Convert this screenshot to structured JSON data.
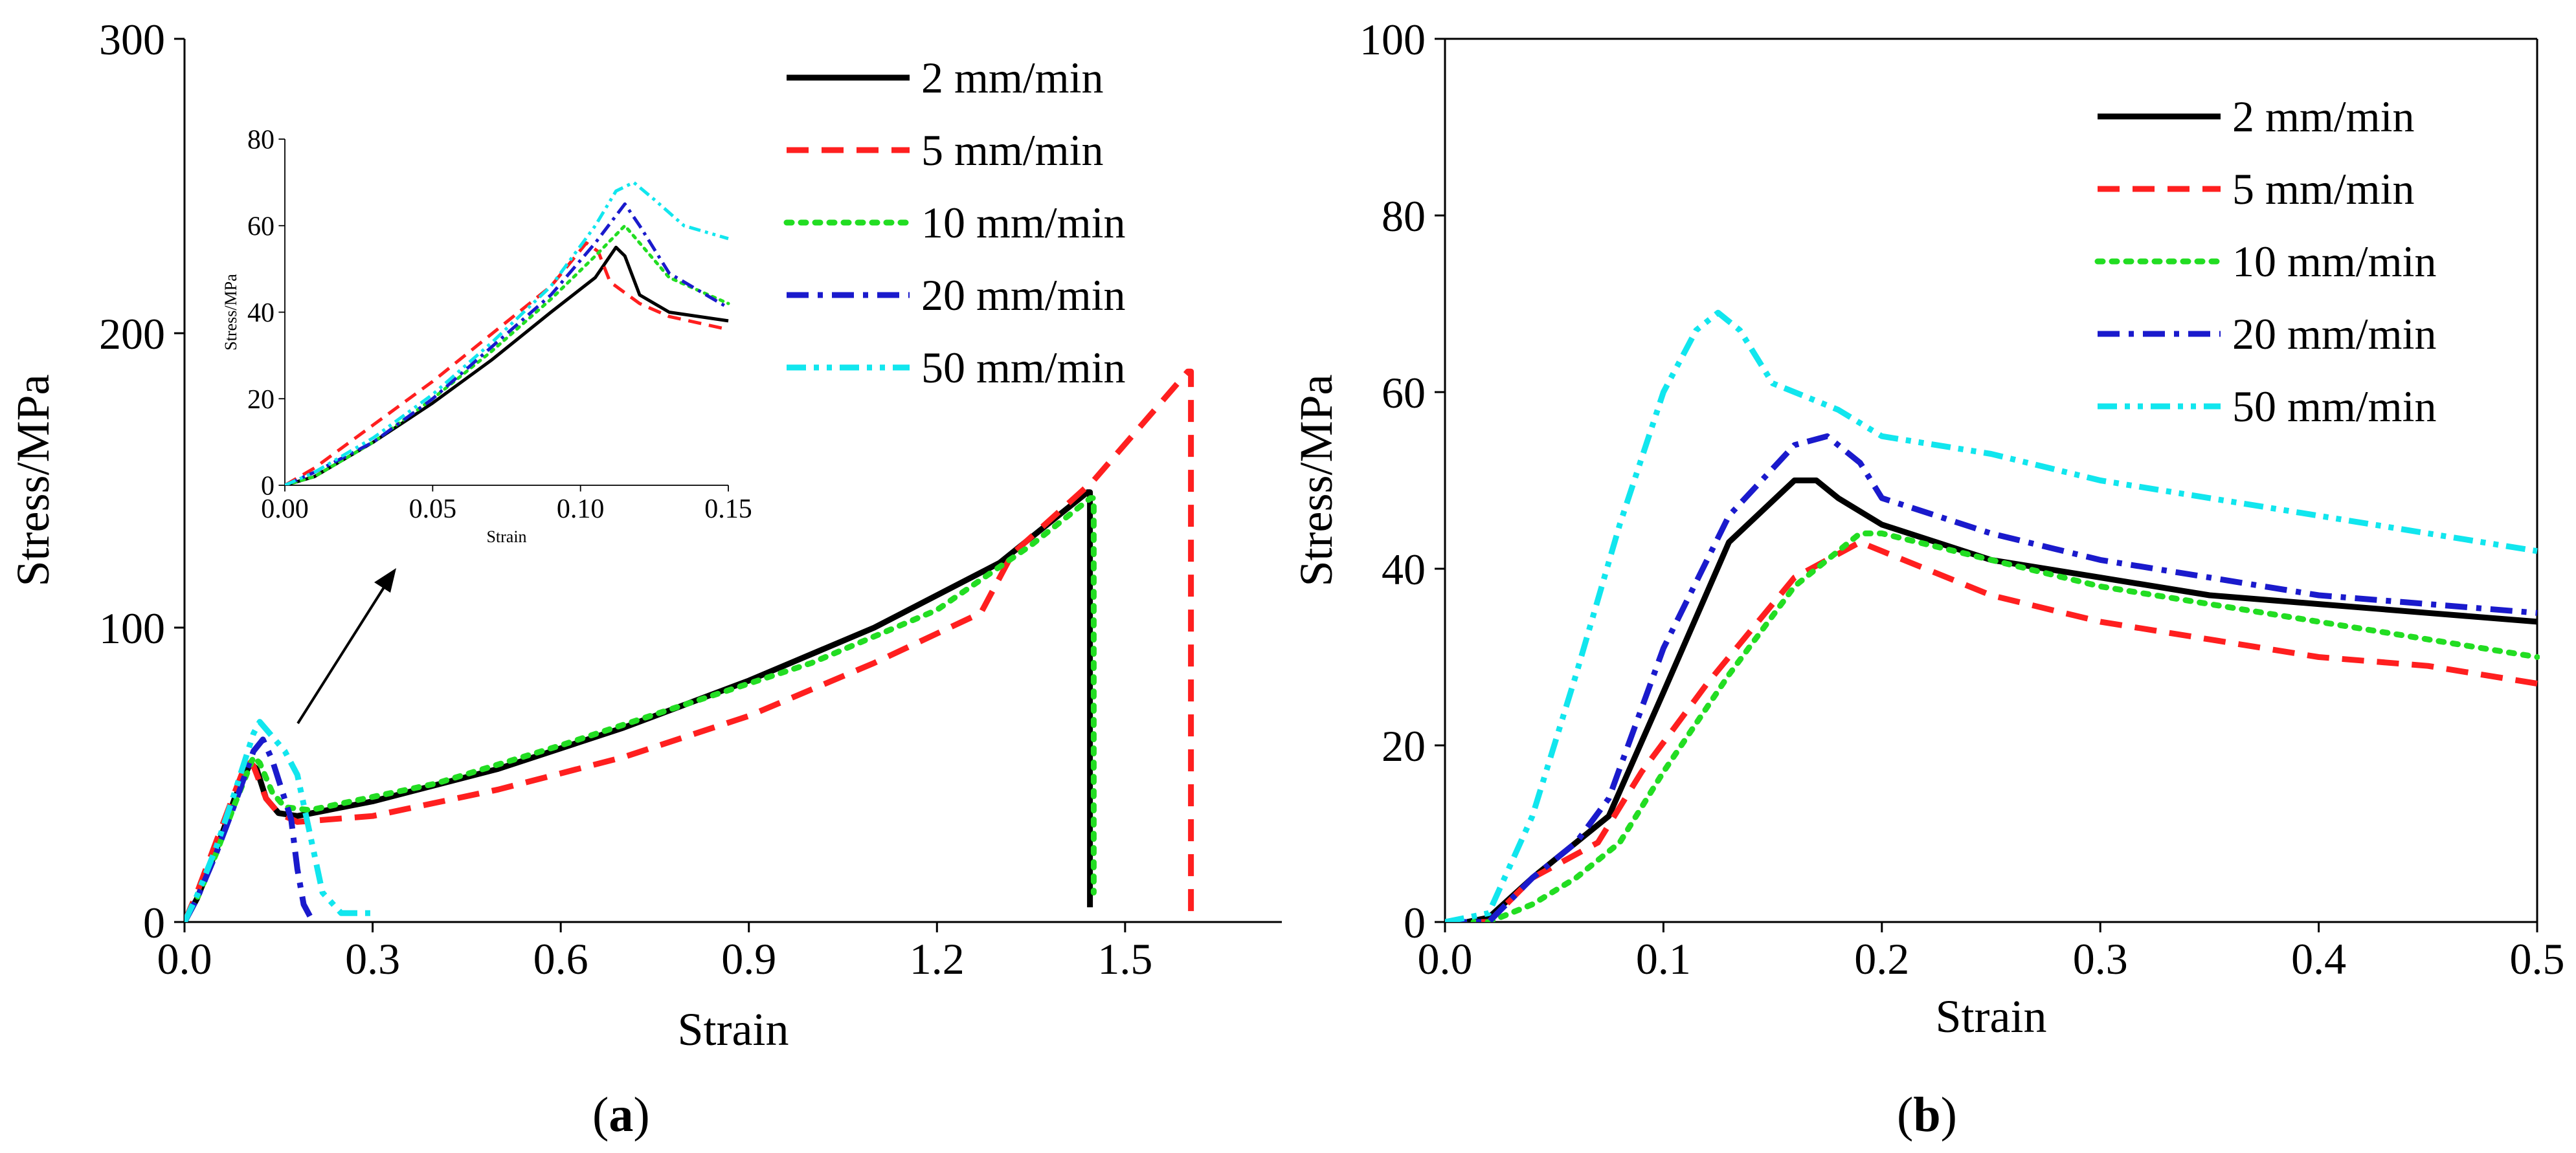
{
  "chart_data": [
    {
      "id": "a",
      "type": "line",
      "xlabel": "Strain",
      "ylabel": "Stress/MPa",
      "xlim": [
        0,
        1.75
      ],
      "ylim": [
        0,
        300
      ],
      "xticks": [
        "0.0",
        "0.3",
        "0.6",
        "0.9",
        "1.2",
        "1.5"
      ],
      "yticks": [
        "0",
        "100",
        "200",
        "300"
      ],
      "legend": [
        "2 mm/min",
        "5 mm/min",
        "10 mm/min",
        "20 mm/min",
        "50 mm/min"
      ],
      "legend_position": "top-right",
      "series": [
        {
          "name": "2 mm/min",
          "color": "#000000",
          "dash": "solid",
          "x": [
            0,
            0.02,
            0.05,
            0.08,
            0.105,
            0.115,
            0.13,
            0.15,
            0.18,
            0.3,
            0.5,
            0.7,
            0.9,
            1.1,
            1.3,
            1.44,
            1.444,
            1.444
          ],
          "y": [
            0,
            8,
            24,
            42,
            54,
            52,
            42,
            37,
            36,
            41,
            52,
            66,
            82,
            100,
            122,
            146,
            146,
            5
          ]
        },
        {
          "name": "5 mm/min",
          "color": "#ff1f1f",
          "dash": "dash",
          "x": [
            0,
            0.02,
            0.05,
            0.08,
            0.1,
            0.11,
            0.13,
            0.15,
            0.18,
            0.3,
            0.5,
            0.7,
            0.9,
            1.1,
            1.27,
            1.32,
            1.45,
            1.6,
            1.605,
            1.605
          ],
          "y": [
            0,
            10,
            27,
            44,
            55,
            53,
            42,
            37,
            34,
            36,
            45,
            56,
            70,
            88,
            105,
            125,
            150,
            187,
            187,
            0
          ]
        },
        {
          "name": "10 mm/min",
          "color": "#22dd22",
          "dash": "dot",
          "x": [
            0,
            0.02,
            0.05,
            0.08,
            0.11,
            0.12,
            0.14,
            0.16,
            0.2,
            0.4,
            0.6,
            0.8,
            1.0,
            1.2,
            1.35,
            1.445,
            1.45,
            1.45
          ],
          "y": [
            0,
            8,
            23,
            40,
            56,
            54,
            44,
            39,
            38,
            47,
            60,
            74,
            88,
            106,
            128,
            144,
            144,
            10
          ]
        },
        {
          "name": "20 mm/min",
          "color": "#1a1acc",
          "dash": "dashdot",
          "x": [
            0,
            0.02,
            0.05,
            0.08,
            0.11,
            0.125,
            0.14,
            0.155,
            0.17,
            0.18,
            0.19,
            0.2
          ],
          "y": [
            0,
            8,
            23,
            40,
            58,
            62,
            55,
            45,
            35,
            18,
            6,
            2
          ]
        },
        {
          "name": "50 mm/min",
          "color": "#11e6ee",
          "dash": "dashdotdot",
          "x": [
            0,
            0.02,
            0.05,
            0.08,
            0.11,
            0.12,
            0.14,
            0.16,
            0.18,
            0.2,
            0.22,
            0.25,
            0.3
          ],
          "y": [
            0,
            9,
            25,
            44,
            64,
            68,
            63,
            58,
            50,
            30,
            10,
            3,
            3
          ]
        }
      ],
      "inset": {
        "xlabel": "Strain",
        "ylabel": "Stress/MPa",
        "xlim": [
          0,
          0.15
        ],
        "ylim": [
          0,
          80
        ],
        "xticks": [
          "0.00",
          "0.05",
          "0.10",
          "0.15"
        ],
        "yticks": [
          "0",
          "20",
          "40",
          "60",
          "80"
        ],
        "series": [
          {
            "name": "2 mm/min",
            "color": "#000000",
            "dash": "solid",
            "x": [
              0,
              0.01,
              0.03,
              0.05,
              0.07,
              0.09,
              0.105,
              0.112,
              0.115,
              0.12,
              0.13,
              0.15
            ],
            "y": [
              0,
              2,
              10,
              19,
              29,
              40,
              48,
              55,
              53,
              44,
              40,
              38
            ]
          },
          {
            "name": "5 mm/min",
            "color": "#ff1f1f",
            "dash": "dash",
            "x": [
              0,
              0.01,
              0.03,
              0.05,
              0.07,
              0.09,
              0.102,
              0.106,
              0.11,
              0.12,
              0.13,
              0.15
            ],
            "y": [
              0,
              4,
              14,
              24,
              35,
              46,
              56,
              54,
              47,
              42,
              39,
              36
            ]
          },
          {
            "name": "10 mm/min",
            "color": "#22dd22",
            "dash": "dot",
            "x": [
              0,
              0.01,
              0.03,
              0.05,
              0.07,
              0.09,
              0.105,
              0.115,
              0.12,
              0.13,
              0.14,
              0.15
            ],
            "y": [
              0,
              2,
              10,
              20,
              31,
              43,
              53,
              60,
              56,
              48,
              45,
              42
            ]
          },
          {
            "name": "20 mm/min",
            "color": "#1a1acc",
            "dash": "dashdot",
            "x": [
              0,
              0.01,
              0.03,
              0.05,
              0.07,
              0.09,
              0.105,
              0.115,
              0.12,
              0.13,
              0.14,
              0.15
            ],
            "y": [
              0,
              3,
              10,
              20,
              32,
              44,
              56,
              65,
              60,
              49,
              45,
              41
            ]
          },
          {
            "name": "50 mm/min",
            "color": "#11e6ee",
            "dash": "dashdotdot",
            "x": [
              0,
              0.01,
              0.03,
              0.05,
              0.07,
              0.09,
              0.105,
              0.112,
              0.118,
              0.125,
              0.135,
              0.15
            ],
            "y": [
              0,
              3,
              11,
              21,
              33,
              46,
              60,
              68,
              70,
              66,
              60,
              57
            ]
          }
        ]
      }
    },
    {
      "id": "b",
      "type": "line",
      "xlabel": "Strain",
      "ylabel": "Stress/MPa",
      "xlim": [
        0,
        0.5
      ],
      "ylim": [
        0,
        100
      ],
      "xticks": [
        "0.0",
        "0.1",
        "0.2",
        "0.3",
        "0.4",
        "0.5"
      ],
      "yticks": [
        "0",
        "20",
        "40",
        "60",
        "80",
        "100"
      ],
      "legend": [
        "2 mm/min",
        "5 mm/min",
        "10 mm/min",
        "20 mm/min",
        "50 mm/min"
      ],
      "legend_position": "top-right",
      "series": [
        {
          "name": "2 mm/min",
          "color": "#000000",
          "dash": "solid",
          "x": [
            0,
            0.01,
            0.02,
            0.04,
            0.06,
            0.075,
            0.1,
            0.13,
            0.16,
            0.17,
            0.18,
            0.2,
            0.25,
            0.3,
            0.35,
            0.4,
            0.45,
            0.5
          ],
          "y": [
            0,
            0,
            0.5,
            5,
            9,
            12,
            26,
            43,
            50,
            50,
            48,
            45,
            41,
            39,
            37,
            36,
            35,
            34
          ]
        },
        {
          "name": "5 mm/min",
          "color": "#ff1f1f",
          "dash": "dash",
          "x": [
            0,
            0.02,
            0.04,
            0.055,
            0.07,
            0.09,
            0.12,
            0.16,
            0.19,
            0.2,
            0.25,
            0.3,
            0.35,
            0.4,
            0.45,
            0.5
          ],
          "y": [
            0,
            0,
            5,
            7,
            9,
            17,
            27,
            39,
            43,
            42,
            37,
            34,
            32,
            30,
            29,
            27
          ]
        },
        {
          "name": "10 mm/min",
          "color": "#22dd22",
          "dash": "dot",
          "x": [
            0,
            0.02,
            0.04,
            0.06,
            0.08,
            0.1,
            0.13,
            0.16,
            0.19,
            0.2,
            0.25,
            0.3,
            0.35,
            0.4,
            0.45,
            0.5
          ],
          "y": [
            0,
            0,
            2,
            5,
            9,
            17,
            28,
            38,
            44,
            44,
            41,
            38,
            36,
            34,
            32,
            30
          ]
        },
        {
          "name": "20 mm/min",
          "color": "#1a1acc",
          "dash": "dashdot",
          "x": [
            0,
            0.02,
            0.04,
            0.06,
            0.075,
            0.1,
            0.13,
            0.16,
            0.175,
            0.19,
            0.2,
            0.25,
            0.3,
            0.35,
            0.4,
            0.45,
            0.5
          ],
          "y": [
            0,
            0,
            5,
            9,
            14,
            31,
            46,
            54,
            55,
            52,
            48,
            44,
            41,
            39,
            37,
            36,
            35
          ]
        },
        {
          "name": "50 mm/min",
          "color": "#11e6ee",
          "dash": "dashdotdot",
          "x": [
            0,
            0.02,
            0.04,
            0.06,
            0.08,
            0.1,
            0.115,
            0.125,
            0.135,
            0.15,
            0.18,
            0.2,
            0.25,
            0.3,
            0.35,
            0.4,
            0.45,
            0.5
          ],
          "y": [
            0,
            1,
            12,
            28,
            45,
            60,
            67,
            69,
            67,
            61,
            58,
            55,
            53,
            50,
            48,
            46,
            44,
            42
          ]
        }
      ]
    }
  ],
  "panel_labels": [
    {
      "open": "(",
      "letter": "a",
      "close": ")"
    },
    {
      "open": "(",
      "letter": "b",
      "close": ")"
    }
  ]
}
